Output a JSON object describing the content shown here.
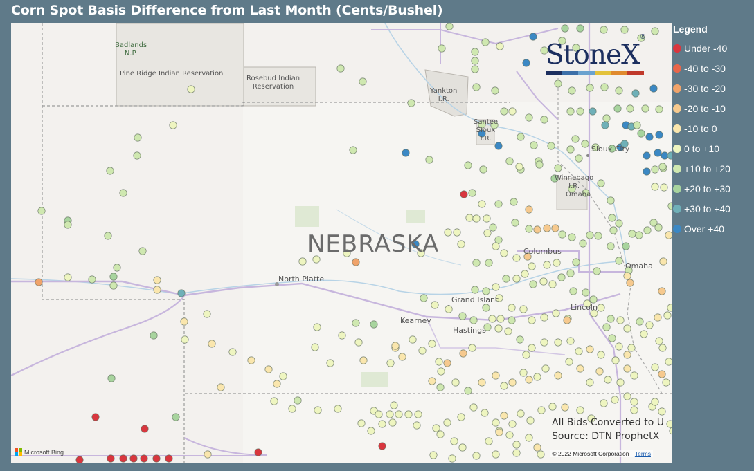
{
  "title": "Corn Spot Basis Difference from Last Month (Cents/Bushel)",
  "map": {
    "state_label": "NEBRASKA",
    "cities": [
      "North Platte",
      "Grand Island",
      "Kearney",
      "Hastings",
      "Columbus",
      "Omaha",
      "Sioux City",
      "Lincoln"
    ],
    "reservations": [
      "Badlands\nN.P.",
      "Pine Ridge Indian Reservation",
      "Rosebud Indian\nReservation",
      "Yankton\nI.R.",
      "Santee\nSioux\nI.R.",
      "Winnebago\nI.R.",
      "Omaha"
    ],
    "note_line1": "All Bids Converted to U",
    "note_line2": "Source: DTN ProphetX",
    "provider": "Microsoft Bing",
    "copyright": "© 2022 Microsoft Corporation",
    "terms": "Terms"
  },
  "logo": {
    "text": "StoneX",
    "mark": "®",
    "bar_colors": [
      "#1c2f5f",
      "#3c6fa8",
      "#6aa2cf",
      "#e3c23a",
      "#e08a2e",
      "#c0392b"
    ]
  },
  "legend": {
    "title": "Legend",
    "items": [
      {
        "label": "Under -40",
        "color": "#d9363e"
      },
      {
        "label": "-40 to -30",
        "color": "#e8664a"
      },
      {
        "label": "-30 to -20",
        "color": "#f0a36a"
      },
      {
        "label": "-20 to -10",
        "color": "#f6c98e"
      },
      {
        "label": "-10 to 0",
        "color": "#fae6ad"
      },
      {
        "label": "0 to +10",
        "color": "#eef5c0"
      },
      {
        "label": "+10 to +20",
        "color": "#cfe8b0"
      },
      {
        "label": "+20 to +30",
        "color": "#a8d49e"
      },
      {
        "label": "+30 to +40",
        "color": "#6fb0b8"
      },
      {
        "label": "Over +40",
        "color": "#3b88c4"
      }
    ]
  }
}
